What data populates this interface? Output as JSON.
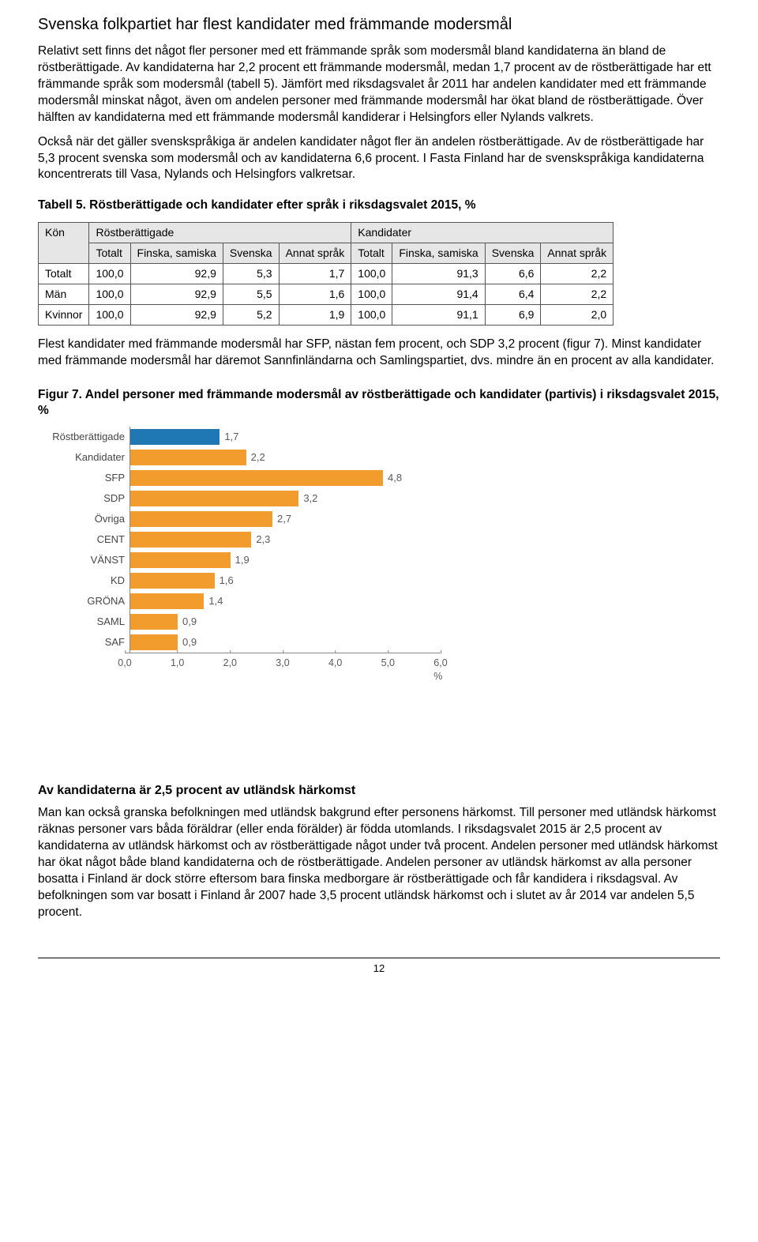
{
  "title": "Svenska folkpartiet har flest kandidater med främmande modersmål",
  "para1": "Relativt sett finns det något fler personer med ett främmande språk som modersmål bland kandidaterna än bland de röstberättigade. Av kandidaterna har 2,2 procent ett främmande modersmål, medan 1,7 procent av de röstberättigade har ett främmande språk som modersmål (tabell 5). Jämfört med riksdagsvalet år 2011 har andelen kandidater med ett främmande modersmål minskat något, även om andelen personer med främmande modersmål har ökat bland de röstberättigade. Över hälften av kandidaterna med ett främmande modersmål kandiderar i Helsingfors eller Nylands valkrets.",
  "para2": "Också när det gäller svenskspråkiga är andelen kandidater något fler än andelen röstberättigade. Av de röstberättigade har 5,3 procent svenska som modersmål och av kandidaterna 6,6 procent. I Fasta Finland har de svenskspråkiga kandidaterna koncentrerats till Vasa, Nylands och Helsingfors valkretsar.",
  "table_title": "Tabell 5. Röstberättigade och kandidater efter språk i riksdagsvalet 2015, %",
  "table": {
    "h_kon": "Kön",
    "h_rost": "Röstberättigade",
    "h_kand": "Kandidater",
    "h_totalt": "Totalt",
    "h_finska": "Finska, samiska",
    "h_svenska": "Svenska",
    "h_annat": "Annat språk",
    "rows": [
      {
        "label": "Totalt",
        "r": [
          "100,0",
          "92,9",
          "5,3",
          "1,7"
        ],
        "k": [
          "100,0",
          "91,3",
          "6,6",
          "2,2"
        ]
      },
      {
        "label": "Män",
        "r": [
          "100,0",
          "92,9",
          "5,5",
          "1,6"
        ],
        "k": [
          "100,0",
          "91,4",
          "6,4",
          "2,2"
        ]
      },
      {
        "label": "Kvinnor",
        "r": [
          "100,0",
          "92,9",
          "5,2",
          "1,9"
        ],
        "k": [
          "100,0",
          "91,1",
          "6,9",
          "2,0"
        ]
      }
    ]
  },
  "para3": "Flest kandidater med främmande modersmål har SFP, nästan fem procent, och SDP 3,2 procent (figur 7). Minst kandidater med främmande modersmål har däremot Sannfinländarna och Samlingspartiet, dvs. mindre än en procent av alla kandidater.",
  "figure_title": "Figur 7. Andel personer med främmande modersmål av röstberättigade och kandidater (partivis) i riksdagsvalet 2015, %",
  "chart": {
    "x_max": 6.0,
    "x_ticks": [
      "0,0",
      "1,0",
      "2,0",
      "3,0",
      "4,0",
      "5,0",
      "6,0 %"
    ],
    "bar_color_default": "#f39c2e",
    "bar_color_first": "#1f77b4",
    "bg": "#ffffff",
    "bars": [
      {
        "label": "Röstberättigade",
        "value": 1.7,
        "display": "1,7",
        "color": "#1f77b4"
      },
      {
        "label": "Kandidater",
        "value": 2.2,
        "display": "2,2",
        "color": "#f39c2e"
      },
      {
        "label": "SFP",
        "value": 4.8,
        "display": "4,8",
        "color": "#f39c2e"
      },
      {
        "label": "SDP",
        "value": 3.2,
        "display": "3,2",
        "color": "#f39c2e"
      },
      {
        "label": "Övriga",
        "value": 2.7,
        "display": "2,7",
        "color": "#f39c2e"
      },
      {
        "label": "CENT",
        "value": 2.3,
        "display": "2,3",
        "color": "#f39c2e"
      },
      {
        "label": "VÄNST",
        "value": 1.9,
        "display": "1,9",
        "color": "#f39c2e"
      },
      {
        "label": "KD",
        "value": 1.6,
        "display": "1,6",
        "color": "#f39c2e"
      },
      {
        "label": "GRÖNA",
        "value": 1.4,
        "display": "1,4",
        "color": "#f39c2e"
      },
      {
        "label": "SAML",
        "value": 0.9,
        "display": "0,9",
        "color": "#f39c2e"
      },
      {
        "label": "SAF",
        "value": 0.9,
        "display": "0,9",
        "color": "#f39c2e"
      }
    ]
  },
  "subhead2": "Av kandidaterna är 2,5 procent av utländsk härkomst",
  "para4": "Man kan också granska befolkningen med utländsk bakgrund efter personens härkomst. Till personer med utländsk härkomst räknas personer vars båda föräldrar (eller enda förälder) är födda utomlands. I riksdagsvalet 2015 är 2,5 procent av kandidaterna av utländsk härkomst och av röstberättigade något under två procent. Andelen personer med utländsk härkomst har ökat något både bland kandidaterna och de röstberättigade. Andelen personer av utländsk härkomst av alla personer bosatta i Finland är dock större eftersom bara finska medborgare är röstberättigade och får kandidera i riksdagsval. Av befolkningen som var bosatt i Finland år 2007 hade 3,5 procent utländsk härkomst och i slutet av år 2014 var andelen 5,5 procent.",
  "page_number": "12"
}
